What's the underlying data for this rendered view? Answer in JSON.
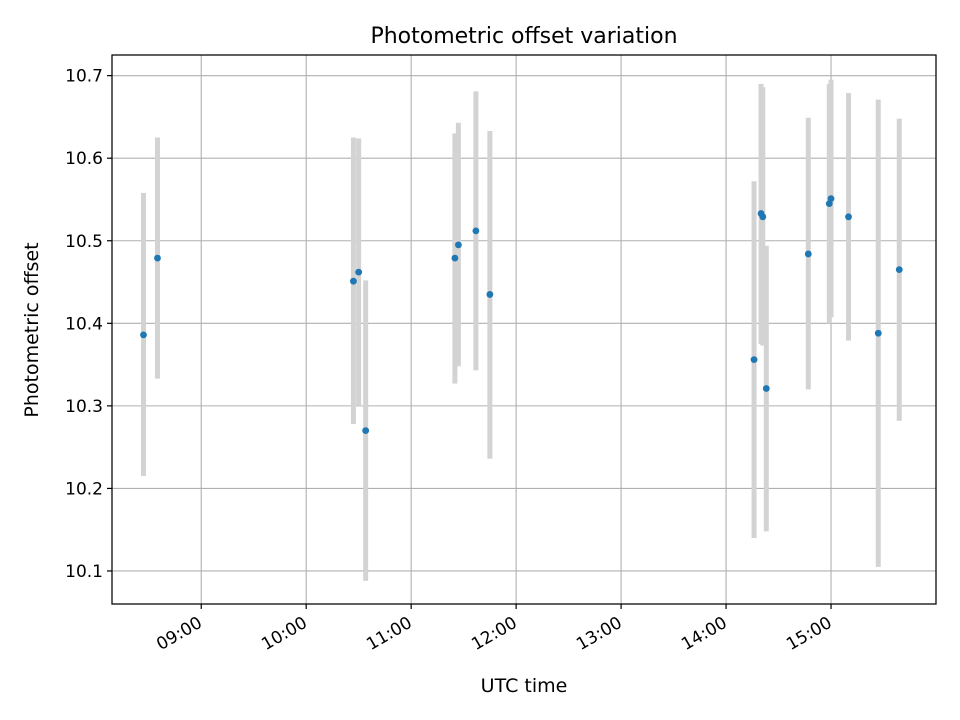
{
  "chart_data": {
    "type": "scatter",
    "title": "Photometric offset variation",
    "xlabel": "UTC time",
    "ylabel": "Photometric offset",
    "x_format": "HH:MM",
    "x_ticks": [
      "09:00",
      "10:00",
      "11:00",
      "12:00",
      "13:00",
      "14:00",
      "15:00"
    ],
    "xlim": [
      "08:09",
      "16:00"
    ],
    "y_ticks": [
      "10.1",
      "10.2",
      "10.3",
      "10.4",
      "10.5",
      "10.6",
      "10.7"
    ],
    "ylim": [
      10.06,
      10.725
    ],
    "grid": true,
    "colors": {
      "point": "#1f77b4",
      "errorbar": "#d3d3d3",
      "grid": "#b0b0b0",
      "axis": "#000000"
    },
    "points": [
      {
        "x": "08:27",
        "y": 10.386,
        "ylow": 10.215,
        "yhigh": 10.558
      },
      {
        "x": "08:35",
        "y": 10.479,
        "ylow": 10.333,
        "yhigh": 10.625
      },
      {
        "x": "10:27",
        "y": 10.451,
        "ylow": 10.278,
        "yhigh": 10.625
      },
      {
        "x": "10:30",
        "y": 10.462,
        "ylow": 10.3,
        "yhigh": 10.624
      },
      {
        "x": "10:34",
        "y": 10.27,
        "ylow": 10.088,
        "yhigh": 10.452
      },
      {
        "x": "11:25",
        "y": 10.479,
        "ylow": 10.327,
        "yhigh": 10.63
      },
      {
        "x": "11:27",
        "y": 10.495,
        "ylow": 10.348,
        "yhigh": 10.643
      },
      {
        "x": "11:37",
        "y": 10.512,
        "ylow": 10.343,
        "yhigh": 10.681
      },
      {
        "x": "11:45",
        "y": 10.435,
        "ylow": 10.236,
        "yhigh": 10.633
      },
      {
        "x": "14:16",
        "y": 10.356,
        "ylow": 10.14,
        "yhigh": 10.572
      },
      {
        "x": "14:20",
        "y": 10.533,
        "ylow": 10.375,
        "yhigh": 10.69
      },
      {
        "x": "14:21",
        "y": 10.529,
        "ylow": 10.373,
        "yhigh": 10.686
      },
      {
        "x": "14:23",
        "y": 10.321,
        "ylow": 10.148,
        "yhigh": 10.494
      },
      {
        "x": "14:47",
        "y": 10.484,
        "ylow": 10.32,
        "yhigh": 10.649
      },
      {
        "x": "14:59",
        "y": 10.545,
        "ylow": 10.4,
        "yhigh": 10.69
      },
      {
        "x": "15:00",
        "y": 10.551,
        "ylow": 10.407,
        "yhigh": 10.695
      },
      {
        "x": "15:10",
        "y": 10.529,
        "ylow": 10.379,
        "yhigh": 10.679
      },
      {
        "x": "15:27",
        "y": 10.388,
        "ylow": 10.105,
        "yhigh": 10.671
      },
      {
        "x": "15:39",
        "y": 10.465,
        "ylow": 10.282,
        "yhigh": 10.648
      }
    ]
  }
}
